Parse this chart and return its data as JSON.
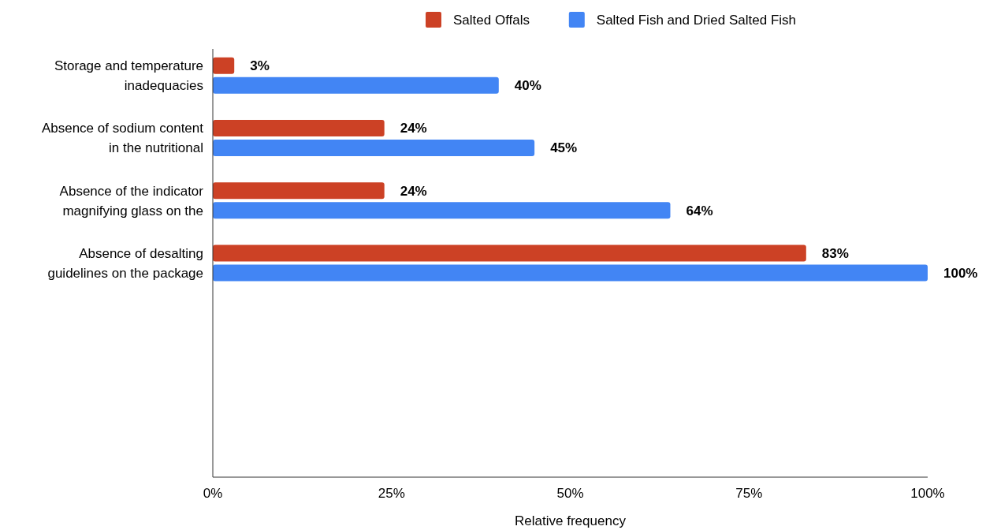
{
  "chart_data": {
    "type": "bar",
    "orientation": "horizontal",
    "xlabel": "Relative frequency",
    "categories": [
      "Storage and temperature inadequacies",
      "Absence of sodium content in the nutritional",
      "Absence of the indicator magnifying glass on the",
      "Absence of desalting guidelines on the package",
      null,
      null,
      null
    ],
    "series": [
      {
        "name": "Salted Offals",
        "color": "#cc4125",
        "values": [
          3,
          24,
          24,
          83,
          null,
          null,
          null
        ],
        "value_labels": [
          "3%",
          "24%",
          "24%",
          "83%",
          null,
          null,
          null
        ]
      },
      {
        "name": "Salted Fish and Dried Salted Fish",
        "color": "#4285f4",
        "values": [
          40,
          45,
          64,
          100,
          null,
          null,
          null
        ],
        "value_labels": [
          "40%",
          "45%",
          "64%",
          "100%",
          null,
          null,
          null
        ]
      }
    ],
    "xlim": [
      0,
      100
    ],
    "xticks": [
      {
        "value": 0,
        "label": "0%"
      },
      {
        "value": 25,
        "label": "25%"
      },
      {
        "value": 50,
        "label": "50%"
      },
      {
        "value": 75,
        "label": "75%"
      },
      {
        "value": 100,
        "label": "100%"
      }
    ],
    "legend": "top"
  }
}
